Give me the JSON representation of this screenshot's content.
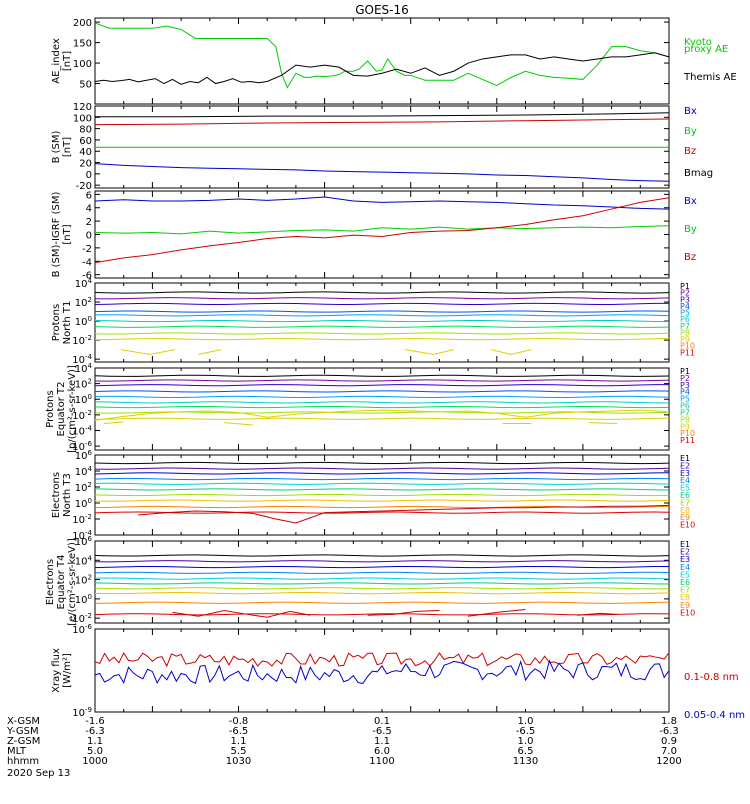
{
  "title": "GOES-16",
  "x_ticks": {
    "x_gsm": [
      "-1.6",
      "-0.8",
      "0.1",
      "1.0",
      "1.8"
    ],
    "y_gsm": [
      "-6.3",
      "-6.5",
      "-6.5",
      "-6.5",
      "-6.3"
    ],
    "z_gsm": [
      "1.1",
      "1.1",
      "1.1",
      "1.0",
      "0.9"
    ],
    "mlt": [
      "5.0",
      "5.5",
      "6.0",
      "6.5",
      "7.0"
    ],
    "hhmm": [
      "1000",
      "1030",
      "1100",
      "1130",
      "1200"
    ]
  },
  "row_labels": [
    "X-GSM",
    "Y-GSM",
    "Z-GSM",
    "MLT",
    "hhmm"
  ],
  "date_label": "2020 Sep 13",
  "colors": {
    "black": "#000000",
    "blue": "#0000cc",
    "green": "#00cc00",
    "red": "#cc0000",
    "p_colors": [
      "#000000",
      "#7a00a0",
      "#2a00d0",
      "#0050ff",
      "#00a0ff",
      "#00d0c0",
      "#00e060",
      "#a0e000",
      "#e0d000",
      "#ff8000",
      "#e00000"
    ],
    "e_colors": [
      "#000000",
      "#5000a0",
      "#0000d0",
      "#0080ff",
      "#00d0d0",
      "#00d080",
      "#a0e000",
      "#f0c000",
      "#ff8000",
      "#e00000"
    ]
  },
  "chart_data": [
    {
      "type": "line",
      "ylabel": [
        "AE_index",
        "[nT]"
      ],
      "ylim": [
        0,
        210
      ],
      "yticks": [
        "50",
        "100",
        "150",
        "200"
      ],
      "series": [
        {
          "name": "Kyoto proxy AE",
          "name_lines": [
            "Kyoto",
            "proxy AE"
          ],
          "color": "#00cc00",
          "x": [
            1000,
            1005,
            1010,
            1015,
            1020,
            1025,
            1030,
            1035,
            1040,
            1045,
            1050,
            1052,
            1055,
            1058,
            1060,
            1063,
            1065,
            1067,
            1070,
            1073,
            1075,
            1077,
            1080,
            1083,
            1085,
            1087,
            1090,
            1092,
            1095,
            1098,
            1100,
            1102,
            1105,
            1108,
            1110,
            1115,
            1120,
            1125,
            1130,
            1135,
            1140,
            1145,
            1150,
            1155,
            1160,
            1165,
            1170,
            1175,
            1180,
            1185,
            1190,
            1195,
            1200
          ],
          "y": [
            198,
            185,
            185,
            185,
            185,
            190,
            182,
            160,
            160,
            160,
            160,
            160,
            160,
            160,
            160,
            140,
            75,
            40,
            75,
            65,
            65,
            68,
            67,
            69,
            72,
            80,
            80,
            85,
            105,
            80,
            83,
            110,
            80,
            70,
            70,
            58,
            58,
            58,
            75,
            60,
            45,
            65,
            80,
            70,
            65,
            63,
            60,
            95,
            140,
            140,
            130,
            125,
            115
          ]
        },
        {
          "name": "Themis AE",
          "name_lines": [
            "Themis AE"
          ],
          "color": "#000000",
          "x": [
            1000,
            1003,
            1006,
            1009,
            1012,
            1015,
            1018,
            1021,
            1024,
            1027,
            1030,
            1033,
            1036,
            1039,
            1042,
            1045,
            1048,
            1051,
            1054,
            1057,
            1060,
            1065,
            1070,
            1075,
            1080,
            1085,
            1090,
            1095,
            1100,
            1105,
            1110,
            1115,
            1120,
            1125,
            1130,
            1135,
            1140,
            1145,
            1150,
            1155,
            1160,
            1165,
            1170,
            1175,
            1180,
            1185,
            1190,
            1195,
            1200
          ],
          "y": [
            55,
            58,
            55,
            57,
            60,
            54,
            58,
            62,
            50,
            60,
            48,
            55,
            52,
            65,
            50,
            55,
            62,
            53,
            55,
            52,
            55,
            70,
            95,
            90,
            95,
            90,
            70,
            68,
            75,
            85,
            75,
            88,
            70,
            80,
            100,
            110,
            115,
            120,
            120,
            110,
            115,
            110,
            105,
            110,
            115,
            115,
            120,
            125,
            115
          ]
        }
      ]
    },
    {
      "type": "line",
      "ylabel": [
        "B (SM)",
        "[nT]"
      ],
      "ylim": [
        -25,
        120
      ],
      "yticks": [
        "-20",
        "0",
        "20",
        "40",
        "60",
        "80",
        "100",
        "120"
      ],
      "series": [
        {
          "name": "Bx",
          "color": "#0000cc",
          "x": [
            1000,
            1010,
            1020,
            1030,
            1040,
            1050,
            1060,
            1070,
            1080,
            1090,
            1100,
            1110,
            1120,
            1130,
            1140,
            1150,
            1160,
            1170,
            1180,
            1190,
            1200
          ],
          "y": [
            18,
            15,
            13,
            11,
            10,
            9,
            8,
            7,
            5,
            4,
            3,
            2,
            1,
            0,
            -2,
            -3,
            -5,
            -7,
            -10,
            -12,
            -13
          ]
        },
        {
          "name": "By",
          "color": "#00cc00",
          "x": [
            1000,
            1100,
            1200
          ],
          "y": [
            47,
            47,
            47
          ]
        },
        {
          "name": "Bz",
          "color": "#cc0000",
          "x": [
            1000,
            1030,
            1060,
            1090,
            1120,
            1150,
            1180,
            1200
          ],
          "y": [
            87,
            88,
            90,
            91,
            92,
            94,
            96,
            97
          ]
        },
        {
          "name": "Bmag",
          "color": "#000000",
          "x": [
            1000,
            1030,
            1060,
            1090,
            1120,
            1150,
            1180,
            1200
          ],
          "y": [
            101,
            101,
            102,
            102,
            103,
            104,
            106,
            108
          ]
        }
      ]
    },
    {
      "type": "line",
      "ylabel": [
        "B (SM)-IGRF (SM)",
        "[nT]"
      ],
      "ylim": [
        -6.5,
        6.5
      ],
      "yticks": [
        "-6",
        "-4",
        "-2",
        "0",
        "2",
        "4",
        "6"
      ],
      "series": [
        {
          "name": "Bx",
          "color": "#0000cc",
          "x": [
            1000,
            1010,
            1020,
            1030,
            1040,
            1050,
            1060,
            1070,
            1080,
            1090,
            1100,
            1110,
            1120,
            1130,
            1140,
            1150,
            1160,
            1170,
            1180,
            1190,
            1200
          ],
          "y": [
            5.0,
            5.2,
            5.0,
            5.0,
            5.1,
            5.3,
            5.1,
            5.3,
            5.6,
            5.0,
            4.8,
            4.9,
            5.0,
            4.9,
            4.8,
            4.6,
            4.4,
            4.3,
            4.1,
            3.9,
            3.8
          ]
        },
        {
          "name": "By",
          "color": "#00cc00",
          "x": [
            1000,
            1010,
            1020,
            1030,
            1040,
            1050,
            1060,
            1070,
            1080,
            1090,
            1100,
            1110,
            1120,
            1130,
            1140,
            1150,
            1160,
            1170,
            1180,
            1190,
            1200
          ],
          "y": [
            0.3,
            0.2,
            0.3,
            0.1,
            0.5,
            0.2,
            0.4,
            0.6,
            0.7,
            0.5,
            1.0,
            0.8,
            1.1,
            0.8,
            1.0,
            0.9,
            1.0,
            1.1,
            1.0,
            1.2,
            1.3
          ]
        },
        {
          "name": "Bz",
          "color": "#cc0000",
          "x": [
            1000,
            1010,
            1020,
            1030,
            1040,
            1050,
            1060,
            1070,
            1080,
            1090,
            1100,
            1110,
            1120,
            1130,
            1140,
            1150,
            1160,
            1170,
            1180,
            1190,
            1200
          ],
          "y": [
            -4.2,
            -3.5,
            -3.0,
            -2.3,
            -1.7,
            -1.2,
            -0.6,
            -0.3,
            -0.5,
            -0.1,
            -0.3,
            0.3,
            0.5,
            0.6,
            1.0,
            1.5,
            2.2,
            2.8,
            3.8,
            4.8,
            5.5
          ]
        }
      ]
    },
    {
      "type": "line",
      "ylog": true,
      "ylabel": [
        "Protons",
        "North T1"
      ],
      "ylim": [
        -4.3,
        4
      ],
      "yticks": [
        "10^-4",
        "10^-2",
        "10^0",
        "10^2",
        "10^4"
      ],
      "legend": [
        "P1",
        "P2",
        "P3",
        "P4",
        "P5",
        "P6",
        "P7",
        "P8",
        "P9",
        "P10",
        "P11"
      ],
      "levels_log10": [
        3.0,
        2.4,
        1.8,
        1.0,
        0.6,
        0.0,
        -0.6,
        -1.3,
        -1.9,
        -3.0,
        -3.4
      ],
      "segments": [
        {
          "color": "#e0d000",
          "x": [
            1009,
            1019,
            1028
          ],
          "y": [
            -3.0,
            -3.5,
            -3.0
          ]
        },
        {
          "color": "#e0d000",
          "x": [
            1036,
            1044
          ],
          "y": [
            -3.5,
            -3.0
          ]
        },
        {
          "color": "#e0d000",
          "x": [
            1108,
            1118,
            1125
          ],
          "y": [
            -3.0,
            -3.5,
            -3.0
          ]
        },
        {
          "color": "#e0d000",
          "x": [
            1138,
            1145,
            1152
          ],
          "y": [
            -3.0,
            -3.5,
            -3.0
          ]
        }
      ]
    },
    {
      "type": "line",
      "ylog": true,
      "ylabel": [
        "Protons",
        "Equator T2",
        "[p/(cm²-s-sr-keV)]"
      ],
      "ylim": [
        -6.5,
        4
      ],
      "yticks": [
        "10^-6",
        "10^-4",
        "10^-2",
        "10^0",
        "10^2",
        "10^4"
      ],
      "legend": [
        "P1",
        "P2",
        "P3",
        "P4",
        "P5",
        "P6",
        "P7",
        "P8",
        "P9",
        "P10",
        "P11"
      ],
      "levels_log10": [
        3.0,
        2.4,
        1.8,
        1.0,
        0.3,
        -0.4,
        -1.0,
        -1.7,
        -2.5,
        -3.0,
        -3.5
      ],
      "segments": [
        {
          "color": "#e0d000",
          "x": [
            1000,
            1010,
            1020,
            1030,
            1040,
            1050,
            1060,
            1070,
            1080,
            1090,
            1100,
            1110,
            1120,
            1130,
            1140,
            1150,
            1160,
            1170,
            1180,
            1190,
            1200
          ],
          "y": [
            -2.7,
            -2.2,
            -1.8,
            -1.6,
            -1.5,
            -1.7,
            -2.3,
            -1.9,
            -1.7,
            -1.5,
            -1.4,
            -1.5,
            -1.6,
            -1.5,
            -1.8,
            -2.3,
            -1.8,
            -1.6,
            -1.5,
            -1.4,
            -1.6
          ]
        },
        {
          "color": "#e0d000",
          "x": [
            1003,
            1010
          ],
          "y": [
            -3.1,
            -2.9
          ]
        },
        {
          "color": "#e0d000",
          "x": [
            1045,
            1055
          ],
          "y": [
            -3.0,
            -3.3
          ]
        },
        {
          "color": "#e0d000",
          "x": [
            1142,
            1152
          ],
          "y": [
            -3.1,
            -3.1
          ]
        },
        {
          "color": "#e0d000",
          "x": [
            1172,
            1182
          ],
          "y": [
            -3.0,
            -3.1
          ]
        }
      ]
    },
    {
      "type": "line",
      "ylog": true,
      "ylabel": [
        "Electrons",
        "North T3"
      ],
      "ylim": [
        -4,
        6
      ],
      "yticks": [
        "10^-4",
        "10^-2",
        "10^0",
        "10^2",
        "10^4",
        "10^6"
      ],
      "legend": [
        "E1",
        "E2",
        "E3",
        "E4",
        "E5",
        "E6",
        "E7",
        "E8",
        "E9",
        "E10"
      ],
      "levels_log10": [
        5.0,
        4.3,
        3.7,
        3.0,
        2.4,
        1.7,
        1.0,
        0.3,
        -0.5,
        -1.2
      ],
      "segments": [
        {
          "color": "#cc0000",
          "x": [
            1015,
            1025,
            1035,
            1045,
            1055,
            1063,
            1070,
            1080,
            1090,
            1100,
            1110,
            1120,
            1130,
            1140,
            1150,
            1160,
            1170,
            1180,
            1190,
            1200
          ],
          "y": [
            -1.5,
            -1.2,
            -1.0,
            -1.1,
            -1.3,
            -2.0,
            -2.5,
            -1.2,
            -1.1,
            -1.0,
            -0.9,
            -0.8,
            -0.7,
            -0.6,
            -0.6,
            -0.5,
            -0.5,
            -0.4,
            -0.4,
            -0.3
          ]
        }
      ]
    },
    {
      "type": "line",
      "ylog": true,
      "ylabel": [
        "Electrons",
        "Equator T4",
        "[e/(cm²-s-sr-keV)]"
      ],
      "ylim": [
        -2.5,
        6
      ],
      "yticks": [
        "10^-2",
        "10^0",
        "10^2",
        "10^4",
        "10^6"
      ],
      "legend": [
        "E1",
        "E2",
        "E3",
        "E4",
        "E5",
        "E6",
        "E7",
        "E8",
        "E9",
        "E10"
      ],
      "levels_log10": [
        4.5,
        3.9,
        3.3,
        2.7,
        2.1,
        1.6,
        1.1,
        0.6,
        -0.4,
        -1.6
      ],
      "segments": [
        {
          "color": "#cc0000",
          "x": [
            1027,
            1036,
            1045,
            1053,
            1060,
            1068,
            1075
          ],
          "y": [
            -1.4,
            -1.8,
            -1.2,
            -1.6,
            -1.9,
            -1.3,
            -1.7
          ]
        },
        {
          "color": "#cc0000",
          "x": [
            1095,
            1104,
            1112,
            1120
          ],
          "y": [
            -1.7,
            -1.6,
            -1.3,
            -1.2
          ]
        },
        {
          "color": "#cc0000",
          "x": [
            1130,
            1140,
            1150
          ],
          "y": [
            -1.8,
            -1.4,
            -1.1
          ]
        },
        {
          "color": "#cc0000",
          "x": [
            1168,
            1176,
            1182
          ],
          "y": [
            -1.7,
            -1.5,
            -1.6
          ]
        }
      ]
    },
    {
      "type": "line",
      "ylog": true,
      "ylabel": [
        "Xray flux",
        "[W/m²]"
      ],
      "ylim": [
        -9,
        -6
      ],
      "yticks": [
        "10^-9",
        "10^-6"
      ],
      "series": [
        {
          "name": "0.1-0.8 nm",
          "color": "#cc0000",
          "base": -7.1,
          "amp": 0.25,
          "seed": 3
        },
        {
          "name": "0.05-0.4 nm",
          "color": "#0000cc",
          "base": -7.65,
          "amp": 0.35,
          "seed": 7
        }
      ]
    }
  ]
}
